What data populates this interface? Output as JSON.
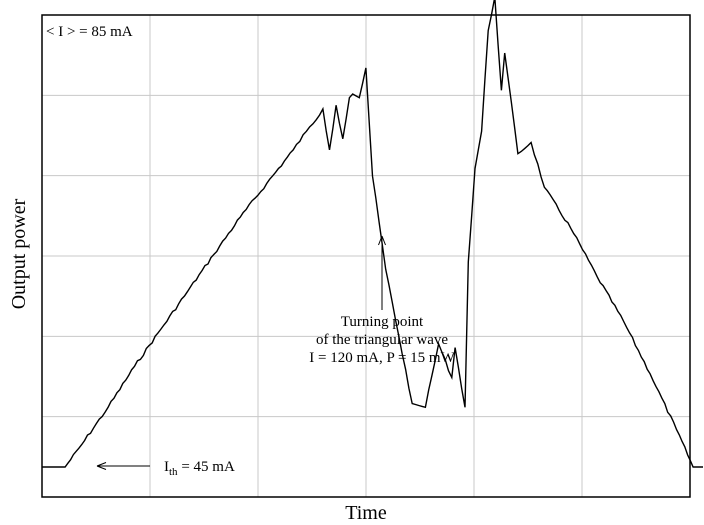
{
  "chart_data": {
    "type": "line",
    "xlabel": "Time",
    "ylabel": "Output power",
    "grid": true,
    "series": [
      {
        "x": [
          0,
          0.035,
          0.06,
          0.1,
          0.14,
          0.18,
          0.22,
          0.26,
          0.3,
          0.34,
          0.38,
          0.4,
          0.41,
          0.425,
          0.435,
          0.445,
          0.455,
          0.465,
          0.47,
          0.48,
          0.49,
          0.5,
          0.52,
          0.54,
          0.56,
          0.58,
          0.6,
          0.62,
          0.625,
          0.64,
          0.645,
          0.655,
          0.665,
          0.675,
          0.685,
          0.695,
          0.7,
          0.72,
          0.74,
          0.76,
          0.8,
          0.84,
          0.88,
          0.92,
          0.96,
          0.985,
          1.0
        ],
        "y": [
          0.0,
          0.0,
          0.06,
          0.16,
          0.27,
          0.37,
          0.47,
          0.57,
          0.67,
          0.76,
          0.85,
          0.9,
          0.92,
          0.96,
          0.85,
          0.97,
          0.88,
          0.99,
          1.0,
          0.99,
          1.07,
          0.78,
          0.53,
          0.35,
          0.17,
          0.16,
          0.33,
          0.24,
          0.32,
          0.16,
          0.55,
          0.8,
          0.9,
          1.17,
          1.26,
          1.01,
          1.11,
          0.84,
          0.87,
          0.75,
          0.64,
          0.51,
          0.39,
          0.25,
          0.1,
          0.0,
          0.0
        ]
      }
    ],
    "annotations": {
      "mean_current": "< I > = 85 mA",
      "threshold_prefix": "I",
      "threshold_sub": "th",
      "threshold_suffix": " = 45 mA",
      "turning_line1": "Turning point",
      "turning_line2": "of the triangular wave",
      "turning_line3": "I = 120 mA, P = 15 mW"
    }
  }
}
